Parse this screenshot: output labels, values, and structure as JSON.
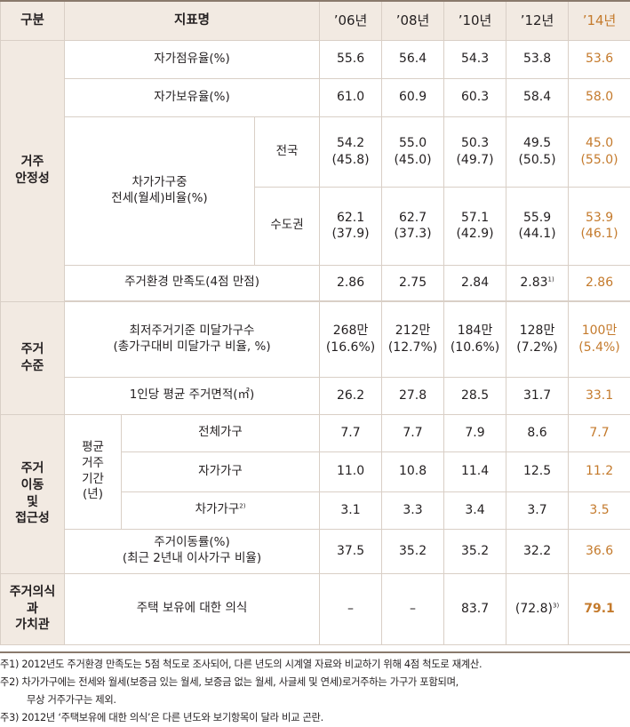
{
  "header": {
    "category": "구분",
    "indicator": "지표명",
    "years": [
      "’06년",
      "’08년",
      "’10년",
      "’12년",
      "’14년"
    ]
  },
  "groups": {
    "stability": "거주\n안정성",
    "level": "주거\n수준",
    "mobility": "주거\n이동\n및\n접근성",
    "awareness": "주거의식\n과\n가치관"
  },
  "rows": {
    "own_occupancy": {
      "label": "자가점유율(%)",
      "values": [
        "55.6",
        "56.4",
        "54.3",
        "53.8",
        "53.6"
      ]
    },
    "own_ownership": {
      "label": "자가보유율(%)",
      "values": [
        "61.0",
        "60.9",
        "60.3",
        "58.4",
        "58.0"
      ]
    },
    "jeonse": {
      "label": "차가가구중\n전세(월세)비율(%)",
      "nation": {
        "label": "전국",
        "values": [
          "54.2\n(45.8)",
          "55.0\n(45.0)",
          "50.3\n(49.7)",
          "49.5\n(50.5)",
          "45.0\n(55.0)"
        ]
      },
      "capital": {
        "label": "수도권",
        "values": [
          "62.1\n(37.9)",
          "62.7\n(37.3)",
          "57.1\n(42.9)",
          "55.9\n(44.1)",
          "53.9\n(46.1)"
        ]
      }
    },
    "satisfaction": {
      "label": "주거환경 만족도(4점 만점)",
      "values": [
        "2.86",
        "2.75",
        "2.84",
        "2.83",
        "2.86"
      ],
      "note_mark": "1)"
    },
    "substandard": {
      "label": "최저주거기준 미달가구수\n(총가구대비 미달가구 비율, %)",
      "values": [
        "268만\n(16.6%)",
        "212만\n(12.7%)",
        "184만\n(10.6%)",
        "128만\n(7.2%)",
        "100만\n(5.4%)"
      ]
    },
    "area": {
      "label": "1인당 평균 주거면적(㎡)",
      "values": [
        "26.2",
        "27.8",
        "28.5",
        "31.7",
        "33.1"
      ]
    },
    "residence": {
      "label": "평균\n거주\n기간\n(년)",
      "all": {
        "label": "전체가구",
        "values": [
          "7.7",
          "7.7",
          "7.9",
          "8.6",
          "7.7"
        ]
      },
      "owner": {
        "label": "자가가구",
        "values": [
          "11.0",
          "10.8",
          "11.4",
          "12.5",
          "11.2"
        ]
      },
      "renter": {
        "label": "차가가구",
        "note_mark": "2)",
        "values": [
          "3.1",
          "3.3",
          "3.4",
          "3.7",
          "3.5"
        ]
      }
    },
    "mobility_rate": {
      "label": "주거이동률(%)\n(최근 2년내 이사가구 비율)",
      "values": [
        "37.5",
        "35.2",
        "35.2",
        "32.2",
        "36.6"
      ]
    },
    "ownership_awareness": {
      "label": "주택 보유에 대한 의식",
      "values": [
        "–",
        "–",
        "83.7",
        "(72.8)",
        "79.1"
      ],
      "note_mark": "3)"
    }
  },
  "notes": [
    "주1) 2012년도 주거환경 만족도는 5점 척도로 조사되어, 다른 년도의 시계열 자료와 비교하기 위해 4점 척도로 재계산.",
    "주2) 차가가구에는 전세와 월세(보증금 있는 월세, 보증금 없는 월세, 사글세 및 연세)로거주하는 가구가 포함되며,",
    "무상 거주가구는 제외.",
    "주3) 2012년 ‘주택보유에 대한 의식’은 다른 년도와 보기항목이 달라 비교 곤란."
  ],
  "colors": {
    "highlight": "#c47a2c",
    "header_bg": "#f2eae2",
    "border": "#d9cfc6"
  }
}
